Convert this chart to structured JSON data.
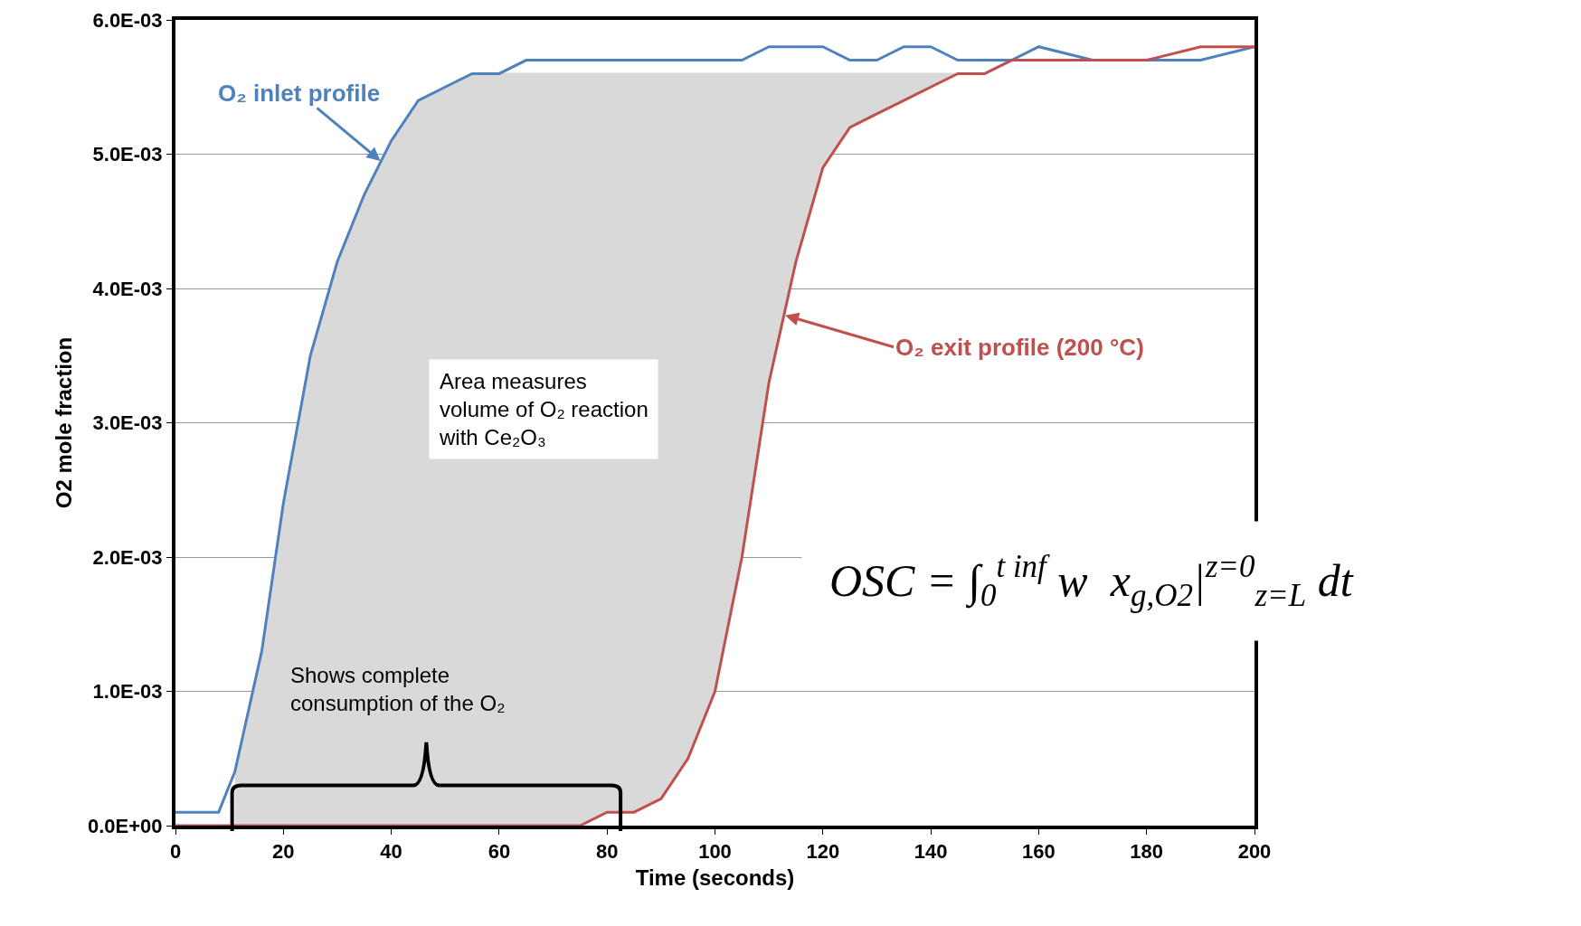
{
  "chart_data": {
    "type": "line",
    "xlabel": "Time (seconds)",
    "ylabel": "O2 mole fraction",
    "x": [
      0,
      5,
      8,
      11,
      16,
      20,
      25,
      30,
      35,
      40,
      45,
      50,
      55,
      60,
      65,
      70,
      75,
      80,
      85,
      90,
      95,
      100,
      105,
      110,
      115,
      120,
      125,
      130,
      135,
      140,
      145,
      150,
      155,
      160,
      170,
      180,
      190,
      200
    ],
    "series": [
      {
        "type": "area",
        "color": "#d9d9d9",
        "x": [
          11,
          16,
          20,
          25,
          30,
          35,
          40,
          45,
          50,
          55,
          60,
          65,
          70,
          75,
          80,
          85,
          90,
          95,
          100,
          105,
          110,
          115,
          120,
          125,
          130,
          135,
          140,
          145
        ],
        "values": [
          0.0004,
          0.0013,
          0.0024,
          0.0035,
          0.0042,
          0.0047,
          0.0051,
          0.0054,
          0.0055,
          0.0056,
          0.0056,
          0.0056,
          0.0056,
          0.0056,
          0.0056,
          0.0056,
          0.0056,
          0.0056,
          0.0056,
          0.0056,
          0.0056,
          0.0056,
          0.0056,
          0.0056,
          0.0056,
          0.0056,
          0.0056,
          0.0056
        ]
      },
      {
        "color": "#4f81bd",
        "values": [
          0.0001,
          0.0001,
          0.0001,
          0.0004,
          0.0013,
          0.0024,
          0.0035,
          0.0042,
          0.0047,
          0.0051,
          0.0054,
          0.0055,
          0.0056,
          0.0056,
          0.0057,
          0.0057,
          0.0057,
          0.0057,
          0.0057,
          0.0057,
          0.0057,
          0.0057,
          0.0057,
          0.0058,
          0.0058,
          0.0058,
          0.0057,
          0.0057,
          0.0058,
          0.0058,
          0.0057,
          0.0057,
          0.0057,
          0.0058,
          0.0057,
          0.0057,
          0.0057,
          0.0058
        ]
      },
      {
        "color": "#c0504d",
        "values": [
          0,
          0,
          0,
          0,
          0,
          0,
          0,
          0,
          0,
          0,
          0,
          0,
          0,
          0,
          0,
          0,
          0,
          0.0001,
          0.0001,
          0.0002,
          0.0005,
          0.001,
          0.002,
          0.0033,
          0.0042,
          0.0049,
          0.0052,
          0.0053,
          0.0054,
          0.0055,
          0.0056,
          0.0056,
          0.0057,
          0.0057,
          0.0057,
          0.0057,
          0.0058,
          0.0058
        ]
      }
    ],
    "xlim": [
      0,
      200
    ],
    "xticks": [
      0,
      20,
      40,
      60,
      80,
      100,
      120,
      140,
      160,
      180,
      200
    ],
    "ylim": [
      0,
      0.006
    ],
    "yticks": [
      {
        "value": 0,
        "label": "0.0E+00"
      },
      {
        "value": 0.001,
        "label": "1.0E-03"
      },
      {
        "value": 0.002,
        "label": "2.0E-03"
      },
      {
        "value": 0.003,
        "label": "3.0E-03"
      },
      {
        "value": 0.004,
        "label": "4.0E-03"
      },
      {
        "value": 0.005,
        "label": "5.0E-03"
      },
      {
        "value": 0.006,
        "label": "6.0E-03"
      }
    ],
    "grid": "y",
    "marker": "none",
    "line_style": "solid",
    "annotations": [
      {
        "text": "O₂ inlet profile",
        "x": 38,
        "y": 0.00495
      },
      {
        "text": "O₂ exit profile (200 °C)",
        "x": 113,
        "y": 0.0038
      },
      "Area measures\nvolume of O₂ reaction\nwith Ce₂O₃",
      "Shows complete\nconsumption of the O₂",
      "OSC = ∫$_{0}$$^{t inf}$ w  x$_{g,O2}$|$^{z=0}$$_{z=L}$ dt"
    ]
  }
}
